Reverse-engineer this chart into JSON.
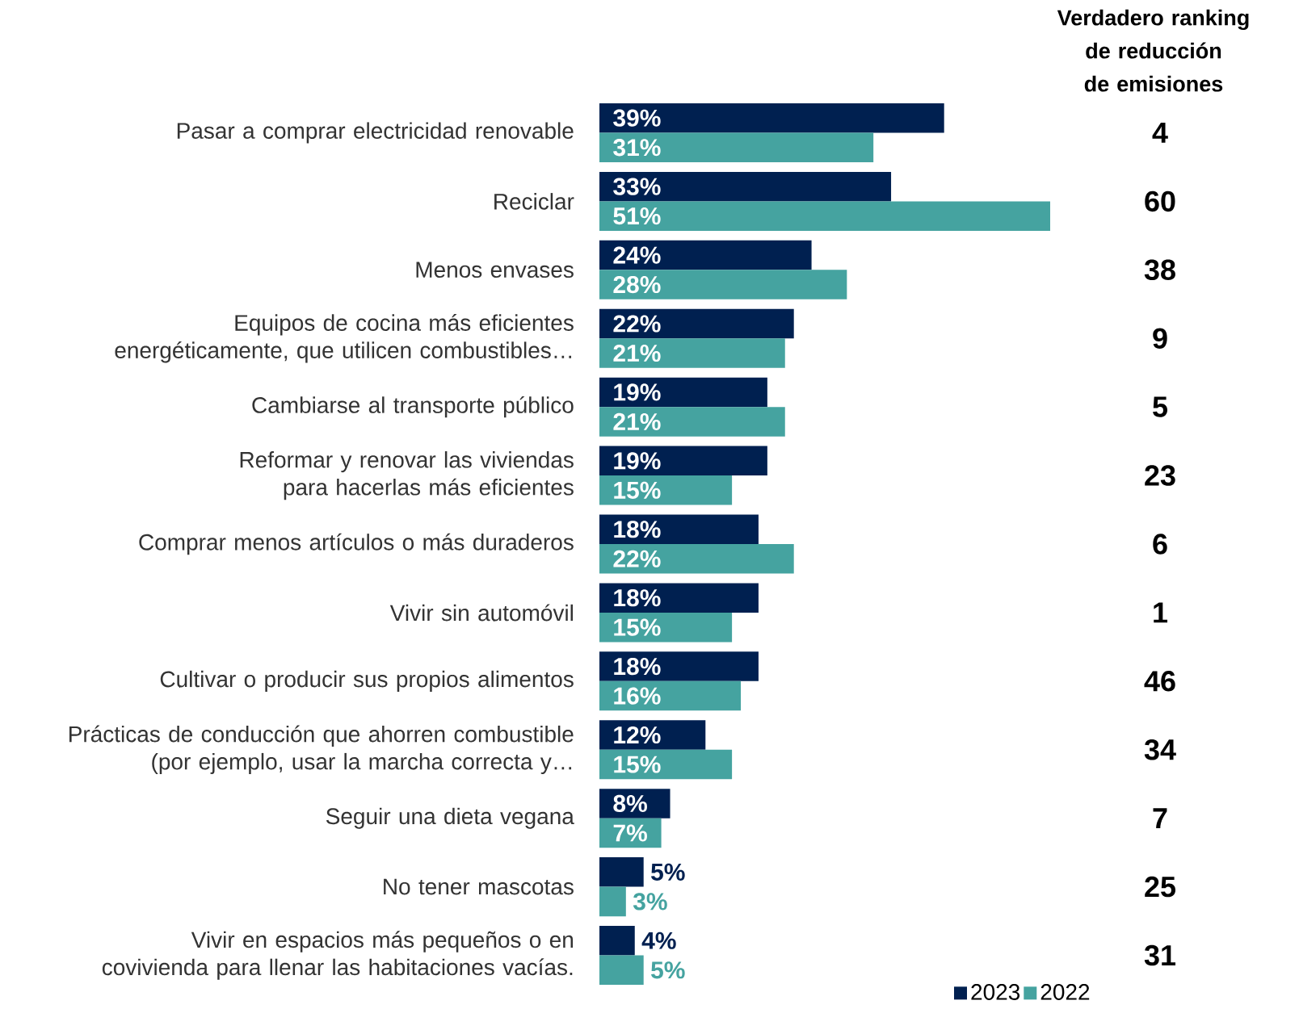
{
  "chart_data": {
    "type": "bar",
    "orientation": "horizontal",
    "title": "Verdadero ranking de reducción de emisiones",
    "categories": [
      "Pasar a comprar electricidad renovable",
      "Reciclar",
      "Menos envases",
      "Equipos de cocina más eficientes energéticamente, que utilicen combustibles…",
      "Cambiarse al transporte público",
      "Reformar y renovar las viviendas para hacerlas más eficientes",
      "Comprar menos artículos o más duraderos",
      "Vivir sin automóvil",
      "Cultivar o producir sus propios alimentos",
      "Prácticas de conducción que ahorren combustible (por ejemplo, usar la marcha correcta y…",
      "Seguir una dieta vegana",
      "No tener mascotas",
      "Vivir en espacios más pequeños o en covivienda para llenar las habitaciones vacías."
    ],
    "series": [
      {
        "name": "2023",
        "color": "#002050",
        "values": [
          39,
          33,
          24,
          22,
          19,
          19,
          18,
          18,
          18,
          12,
          8,
          5,
          4
        ],
        "value_labels": [
          "39%",
          "33%",
          "24%",
          "22%",
          "19%",
          "19%",
          "18%",
          "18%",
          "18%",
          "12%",
          "8%",
          "5%",
          "4%"
        ]
      },
      {
        "name": "2022",
        "color": "#45a3a0",
        "values": [
          31,
          51,
          28,
          21,
          21,
          15,
          22,
          15,
          16,
          15,
          7,
          3,
          5
        ],
        "value_labels": [
          "31%",
          "51%",
          "28%",
          "21%",
          "21%",
          "15%",
          "22%",
          "15%",
          "16%",
          "15%",
          "7%",
          "3%",
          "5%"
        ]
      }
    ],
    "annotations": [
      "4",
      "60",
      "38",
      "9",
      "5",
      "23",
      "6",
      "1",
      "46",
      "34",
      "7",
      "25",
      "31"
    ],
    "legend": "bottom right"
  }
}
